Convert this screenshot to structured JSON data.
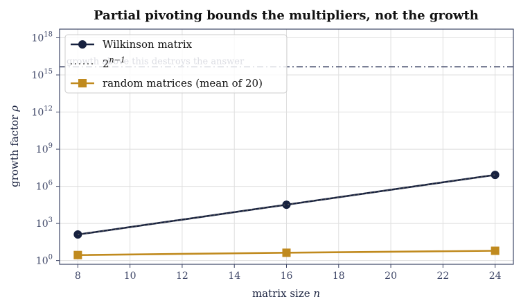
{
  "chart_data": {
    "type": "line",
    "title": "Partial pivoting bounds the multipliers, not the growth",
    "xlabel": "matrix size n",
    "ylabel": "growth factor ρ",
    "yscale": "log",
    "x": [
      8,
      16,
      24
    ],
    "xlim": [
      7.3,
      24.7
    ],
    "ylim_log10": [
      -0.3,
      18.7
    ],
    "x_ticks": [
      8,
      10,
      12,
      14,
      16,
      18,
      20,
      22,
      24
    ],
    "y_ticks_log10": [
      0,
      3,
      6,
      9,
      12,
      15,
      18
    ],
    "grid": true,
    "legend_position": "top-left",
    "series": [
      {
        "name": "Wilkinson matrix",
        "values": [
          128,
          32768,
          8388608
        ],
        "color": "#17213f",
        "marker": "circle",
        "style": "solid"
      },
      {
        "name": "2^{n-1}",
        "values": [
          128,
          32768,
          8388608
        ],
        "color": "#555555",
        "marker": "none",
        "style": "dotted"
      },
      {
        "name": "random matrices (mean of 20)",
        "values": [
          2.8,
          4.3,
          6.2
        ],
        "color": "#c08a1e",
        "marker": "square",
        "style": "solid"
      }
    ],
    "reference_line": {
      "y": 4500000000000000.0,
      "label": "growth above this destroys the answer",
      "color": "#3d4566",
      "style": "dashdot"
    }
  }
}
